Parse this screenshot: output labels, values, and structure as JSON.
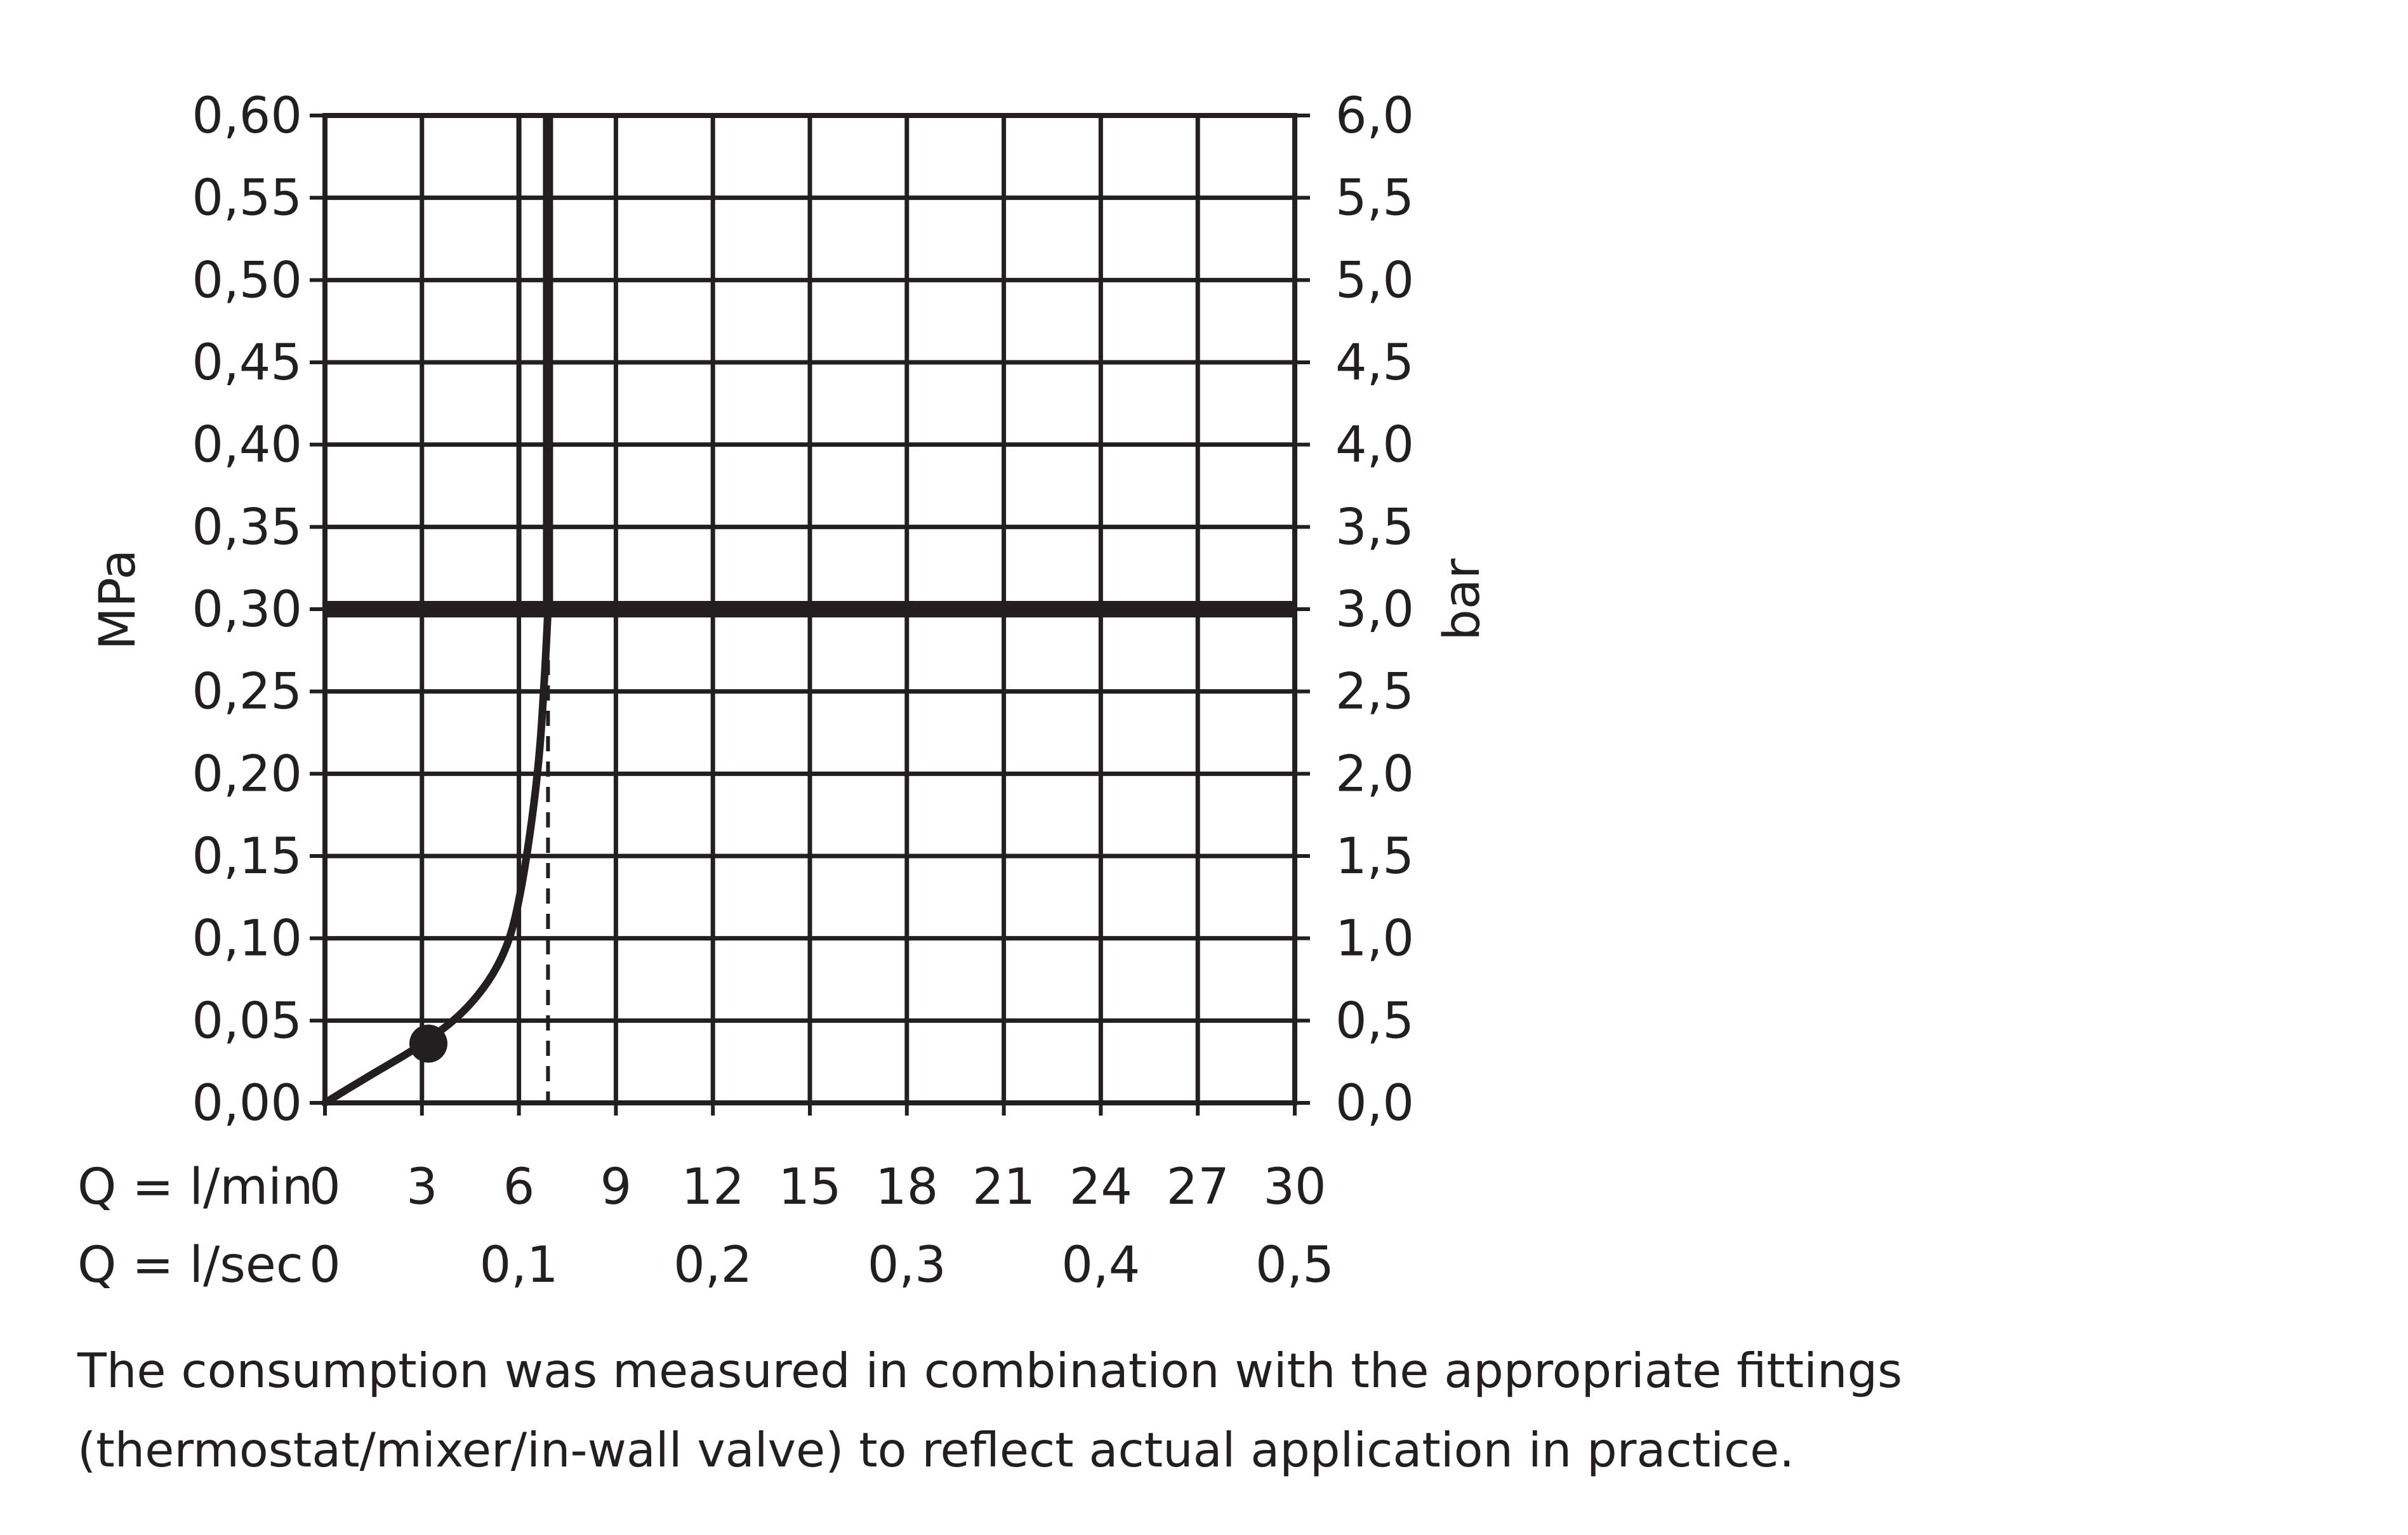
{
  "chart_data": {
    "type": "line",
    "y_left_label": "MPa",
    "y_right_label": "bar",
    "x_row1_label": "Q = l/min",
    "x_row2_label": "Q = l/sec",
    "y_left_ticks": [
      "0,60",
      "0,55",
      "0,50",
      "0,45",
      "0,40",
      "0,35",
      "0,30",
      "0,25",
      "0,20",
      "0,15",
      "0,10",
      "0,05",
      "0,00"
    ],
    "y_right_ticks": [
      "6,0",
      "5,5",
      "5,0",
      "4,5",
      "4,0",
      "3,5",
      "3,0",
      "2,5",
      "2,0",
      "1,5",
      "1,0",
      "0,5",
      "0,0"
    ],
    "x_lmin_ticks": [
      "0",
      "3",
      "6",
      "9",
      "12",
      "15",
      "18",
      "21",
      "24",
      "27",
      "30"
    ],
    "x_lsec_ticks": [
      "0",
      "0,1",
      "0,2",
      "0,3",
      "0,4",
      "0,5"
    ],
    "xlim": [
      0,
      30
    ],
    "ylim": [
      0,
      0.6
    ],
    "grid": true,
    "series": [
      {
        "x": [
          0,
          1.5,
          3,
          4.5,
          5.6,
          6.1,
          6.6,
          6.8,
          6.9
        ],
        "y": [
          0,
          0.018,
          0.035,
          0.058,
          0.09,
          0.13,
          0.2,
          0.26,
          0.3
        ]
      }
    ],
    "marker": {
      "x": 3.2,
      "y": 0.036
    },
    "reference_pressure": 0.3,
    "reference_flow": 6.9,
    "limit_line_x": 6
  },
  "caption": "The consumption was measured in combination with the appropriate fittings (thermostat/mixer/in-wall valve) to reflect actual application in practice.",
  "colors": {
    "ink": "#231f20",
    "background": "#ffffff"
  }
}
